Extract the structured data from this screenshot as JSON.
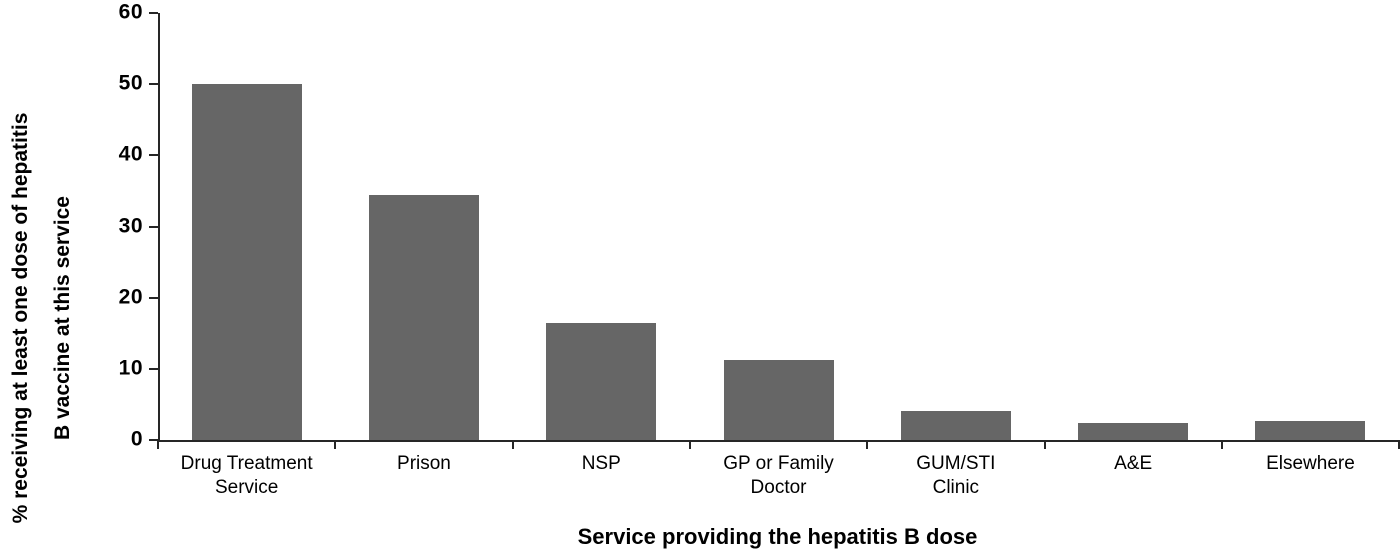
{
  "chart_data": {
    "type": "bar",
    "title": "",
    "categories": [
      "Drug Treatment Service",
      "Prison",
      "NSP",
      "GP or Family Doctor",
      "GUM/STI Clinic",
      "A&E",
      "Elsewhere"
    ],
    "category_lines": [
      [
        "Drug Treatment",
        "Service"
      ],
      [
        "Prison"
      ],
      [
        "NSP"
      ],
      [
        "GP or Family",
        "Doctor"
      ],
      [
        "GUM/STI",
        "Clinic"
      ],
      [
        "A&E"
      ],
      [
        "Elsewhere"
      ]
    ],
    "values": [
      50,
      34.4,
      16.4,
      11.2,
      4.1,
      2.4,
      2.6
    ],
    "xlabel": "Service providing the hepatitis B dose",
    "ylabel": "% receiving at least one dose of hepatitis B vaccine at this service",
    "ylabel_lines": [
      "% receiving at least one dose of hepatitis",
      "B vaccine at this service"
    ],
    "ylim": [
      0,
      60
    ],
    "yticks": [
      0,
      10,
      20,
      30,
      40,
      50,
      60
    ],
    "grid": false,
    "legend": false,
    "bar_color": "#666666",
    "axis_color": "#262626",
    "background": "#ffffff"
  }
}
